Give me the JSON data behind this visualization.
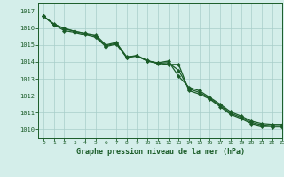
{
  "title": "Graphe pression niveau de la mer (hPa)",
  "xlim": [
    -0.5,
    23
  ],
  "ylim": [
    1009.5,
    1017.5
  ],
  "yticks": [
    1010,
    1011,
    1012,
    1013,
    1014,
    1015,
    1016,
    1017
  ],
  "xticks": [
    0,
    1,
    2,
    3,
    4,
    5,
    6,
    7,
    8,
    9,
    10,
    11,
    12,
    13,
    14,
    15,
    16,
    17,
    18,
    19,
    20,
    21,
    22,
    23
  ],
  "background_color": "#d4eeea",
  "grid_color": "#a8ceca",
  "line_color": "#1a5c28",
  "line1": [
    1016.7,
    1016.2,
    1016.0,
    1015.8,
    1015.7,
    1015.6,
    1015.0,
    1015.15,
    1014.3,
    1014.35,
    1014.05,
    1013.95,
    1014.05,
    1013.15,
    1012.5,
    1012.3,
    1011.9,
    1011.5,
    1011.05,
    1010.8,
    1010.5,
    1010.35,
    1010.3,
    1010.3
  ],
  "line2": [
    1016.7,
    1016.2,
    1015.85,
    1015.75,
    1015.6,
    1015.45,
    1014.9,
    1015.05,
    1014.25,
    1014.35,
    1014.05,
    1013.9,
    1013.85,
    1013.85,
    1012.3,
    1012.1,
    1011.8,
    1011.35,
    1010.9,
    1010.65,
    1010.35,
    1010.2,
    1010.15,
    1010.15
  ],
  "line3": [
    1016.7,
    1016.25,
    1015.95,
    1015.82,
    1015.68,
    1015.52,
    1014.95,
    1015.1,
    1014.28,
    1014.38,
    1014.08,
    1013.92,
    1013.95,
    1013.5,
    1012.4,
    1012.2,
    1011.85,
    1011.42,
    1010.97,
    1010.72,
    1010.42,
    1010.27,
    1010.22,
    1010.22
  ]
}
